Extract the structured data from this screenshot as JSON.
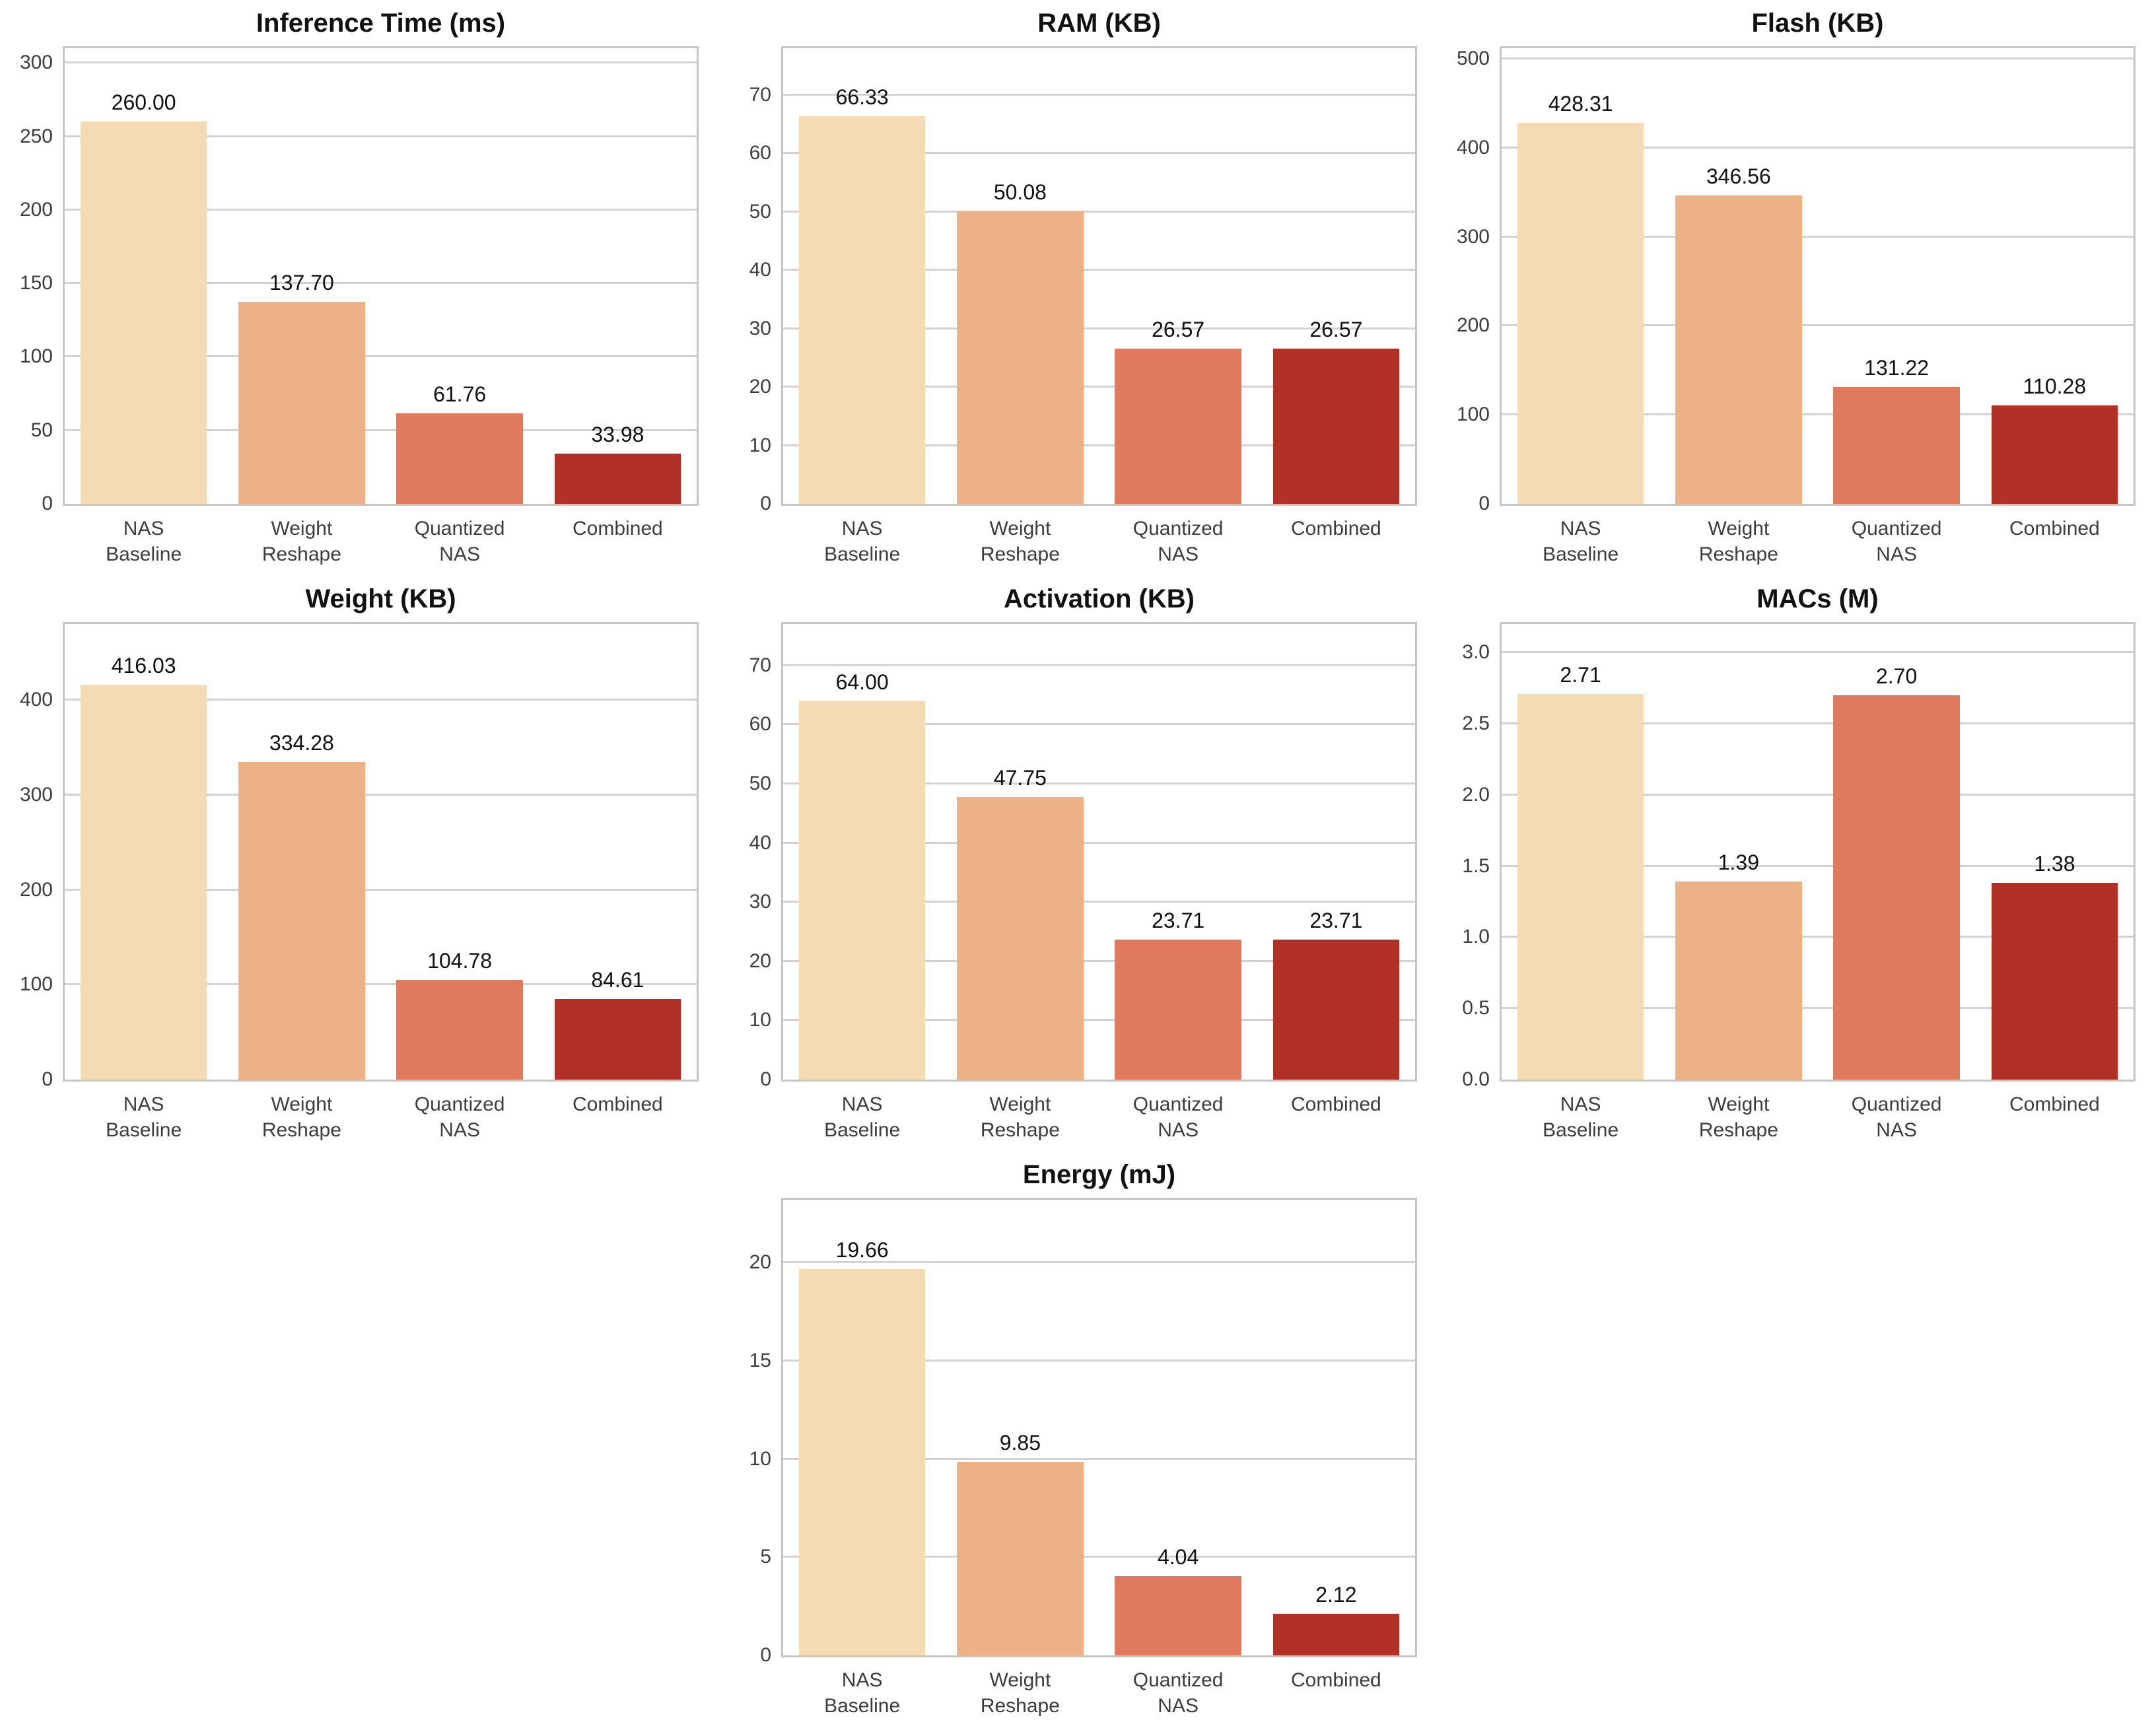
{
  "figure": {
    "background": "#ffffff",
    "grid_color": "#d2d2d2",
    "border_color": "#c6c6c6",
    "title_color": "#111111",
    "tick_color": "#3d3d3d",
    "value_label_color": "#111111",
    "category_color": "#3d3d3d",
    "palette": [
      "#F4DBB4",
      "#ECB285",
      "#DF7A5F",
      "#B23127"
    ],
    "layout": "3x3 grid, seventh chart centered in bottom row",
    "grid_on": true
  },
  "chart_data": [
    {
      "type": "bar",
      "title": "Inference Time (ms)",
      "categories": [
        "NAS\nBaseline",
        "Weight\nReshape",
        "Quantized\nNAS",
        "Combined"
      ],
      "values": [
        260.0,
        137.7,
        61.76,
        33.98
      ],
      "value_labels": [
        "260.00",
        "137.70",
        "61.76",
        "33.98"
      ],
      "yticks": [
        0,
        50,
        100,
        150,
        200,
        250,
        300
      ],
      "ytick_labels": [
        "0",
        "50",
        "100",
        "150",
        "200",
        "250",
        "300"
      ],
      "ylim": [
        0,
        310
      ],
      "xlabel": "",
      "ylabel": "",
      "legend": null,
      "cell": 0
    },
    {
      "type": "bar",
      "title": "RAM (KB)",
      "categories": [
        "NAS\nBaseline",
        "Weight\nReshape",
        "Quantized\nNAS",
        "Combined"
      ],
      "values": [
        66.33,
        50.08,
        26.57,
        26.57
      ],
      "value_labels": [
        "66.33",
        "50.08",
        "26.57",
        "26.57"
      ],
      "yticks": [
        0,
        10,
        20,
        30,
        40,
        50,
        60,
        70
      ],
      "ytick_labels": [
        "0",
        "10",
        "20",
        "30",
        "40",
        "50",
        "60",
        "70"
      ],
      "ylim": [
        0,
        78
      ],
      "xlabel": "",
      "ylabel": "",
      "legend": null,
      "cell": 1
    },
    {
      "type": "bar",
      "title": "Flash (KB)",
      "categories": [
        "NAS\nBaseline",
        "Weight\nReshape",
        "Quantized\nNAS",
        "Combined"
      ],
      "values": [
        428.31,
        346.56,
        131.22,
        110.28
      ],
      "value_labels": [
        "428.31",
        "346.56",
        "131.22",
        "110.28"
      ],
      "yticks": [
        0,
        100,
        200,
        300,
        400,
        500
      ],
      "ytick_labels": [
        "0",
        "100",
        "200",
        "300",
        "400",
        "500"
      ],
      "ylim": [
        0,
        512
      ],
      "xlabel": "",
      "ylabel": "",
      "legend": null,
      "cell": 2
    },
    {
      "type": "bar",
      "title": "Weight (KB)",
      "categories": [
        "NAS\nBaseline",
        "Weight\nReshape",
        "Quantized\nNAS",
        "Combined"
      ],
      "values": [
        416.03,
        334.28,
        104.78,
        84.61
      ],
      "value_labels": [
        "416.03",
        "334.28",
        "104.78",
        "84.61"
      ],
      "yticks": [
        0,
        100,
        200,
        300,
        400
      ],
      "ytick_labels": [
        "0",
        "100",
        "200",
        "300",
        "400"
      ],
      "ylim": [
        0,
        480
      ],
      "xlabel": "",
      "ylabel": "",
      "legend": null,
      "cell": 3
    },
    {
      "type": "bar",
      "title": "Activation (KB)",
      "categories": [
        "NAS\nBaseline",
        "Weight\nReshape",
        "Quantized\nNAS",
        "Combined"
      ],
      "values": [
        64.0,
        47.75,
        23.71,
        23.71
      ],
      "value_labels": [
        "64.00",
        "47.75",
        "23.71",
        "23.71"
      ],
      "yticks": [
        0,
        10,
        20,
        30,
        40,
        50,
        60,
        70
      ],
      "ytick_labels": [
        "0",
        "10",
        "20",
        "30",
        "40",
        "50",
        "60",
        "70"
      ],
      "ylim": [
        0,
        77
      ],
      "xlabel": "",
      "ylabel": "",
      "legend": null,
      "cell": 4
    },
    {
      "type": "bar",
      "title": "MACs (M)",
      "categories": [
        "NAS\nBaseline",
        "Weight\nReshape",
        "Quantized\nNAS",
        "Combined"
      ],
      "values": [
        2.71,
        1.39,
        2.7,
        1.38
      ],
      "value_labels": [
        "2.71",
        "1.39",
        "2.70",
        "1.38"
      ],
      "yticks": [
        0,
        0.5,
        1.0,
        1.5,
        2.0,
        2.5,
        3.0
      ],
      "ytick_labels": [
        "0.0",
        "0.5",
        "1.0",
        "1.5",
        "2.0",
        "2.5",
        "3.0"
      ],
      "ylim": [
        0,
        3.2
      ],
      "xlabel": "",
      "ylabel": "",
      "legend": null,
      "cell": 5
    },
    {
      "type": "bar",
      "title": "Energy (mJ)",
      "categories": [
        "NAS\nBaseline",
        "Weight\nReshape",
        "Quantized\nNAS",
        "Combined"
      ],
      "values": [
        19.66,
        9.85,
        4.04,
        2.12
      ],
      "value_labels": [
        "19.66",
        "9.85",
        "4.04",
        "2.12"
      ],
      "yticks": [
        0,
        5,
        10,
        15,
        20
      ],
      "ytick_labels": [
        "0",
        "5",
        "10",
        "15",
        "20"
      ],
      "ylim": [
        0,
        23.2
      ],
      "xlabel": "",
      "ylabel": "",
      "legend": null,
      "cell": 7
    }
  ]
}
